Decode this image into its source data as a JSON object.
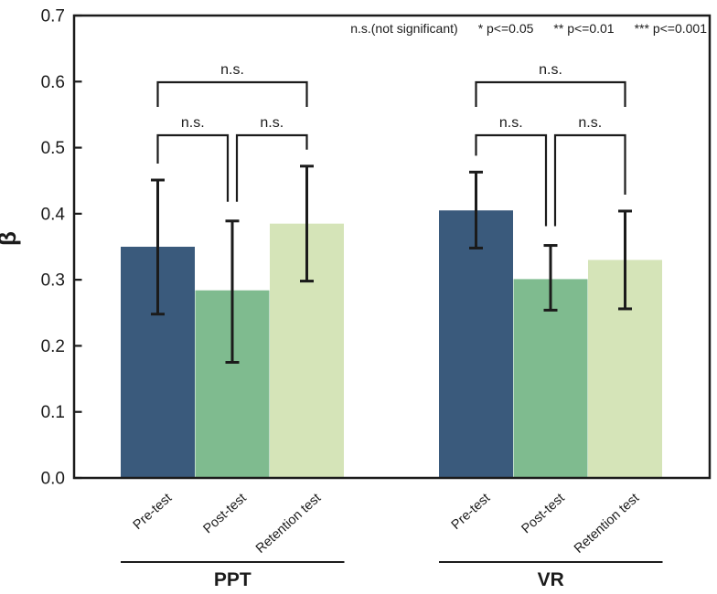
{
  "legend": {
    "items": [
      "n.s.(not significant)",
      "* p<=0.05",
      "** p<=0.01",
      "*** p<=0.001"
    ]
  },
  "chart_data": {
    "type": "bar",
    "title": "",
    "xlabel": "",
    "ylabel": "β",
    "ylim": [
      0,
      0.7
    ],
    "ytick_step": 0.1,
    "grid": false,
    "legend_position": "top-right inside plot",
    "categories": [
      "Pre-test",
      "Post-test",
      "Retention test"
    ],
    "bar_colors": [
      "#3A5A7C",
      "#7FBB8F",
      "#D5E4B8"
    ],
    "groups": [
      {
        "label": "PPT",
        "values": [
          0.35,
          0.284,
          0.385
        ],
        "err_low": [
          0.248,
          0.175,
          0.298
        ],
        "err_high": [
          0.451,
          0.389,
          0.472
        ]
      },
      {
        "label": "VR",
        "values": [
          0.405,
          0.301,
          0.33
        ],
        "err_low": [
          0.348,
          0.254,
          0.256
        ],
        "err_high": [
          0.463,
          0.352,
          0.404
        ]
      }
    ],
    "comparisons": [
      {
        "group": 0,
        "from": 0,
        "to": 2,
        "level": "outer",
        "label": "n.s."
      },
      {
        "group": 0,
        "from": 0,
        "to": 1,
        "level": "inner",
        "label": "n.s."
      },
      {
        "group": 0,
        "from": 1,
        "to": 2,
        "level": "inner",
        "label": "n.s."
      },
      {
        "group": 1,
        "from": 0,
        "to": 2,
        "level": "outer",
        "label": "n.s."
      },
      {
        "group": 1,
        "from": 0,
        "to": 1,
        "level": "inner",
        "label": "n.s."
      },
      {
        "group": 1,
        "from": 1,
        "to": 2,
        "level": "inner",
        "label": "n.s."
      }
    ]
  }
}
